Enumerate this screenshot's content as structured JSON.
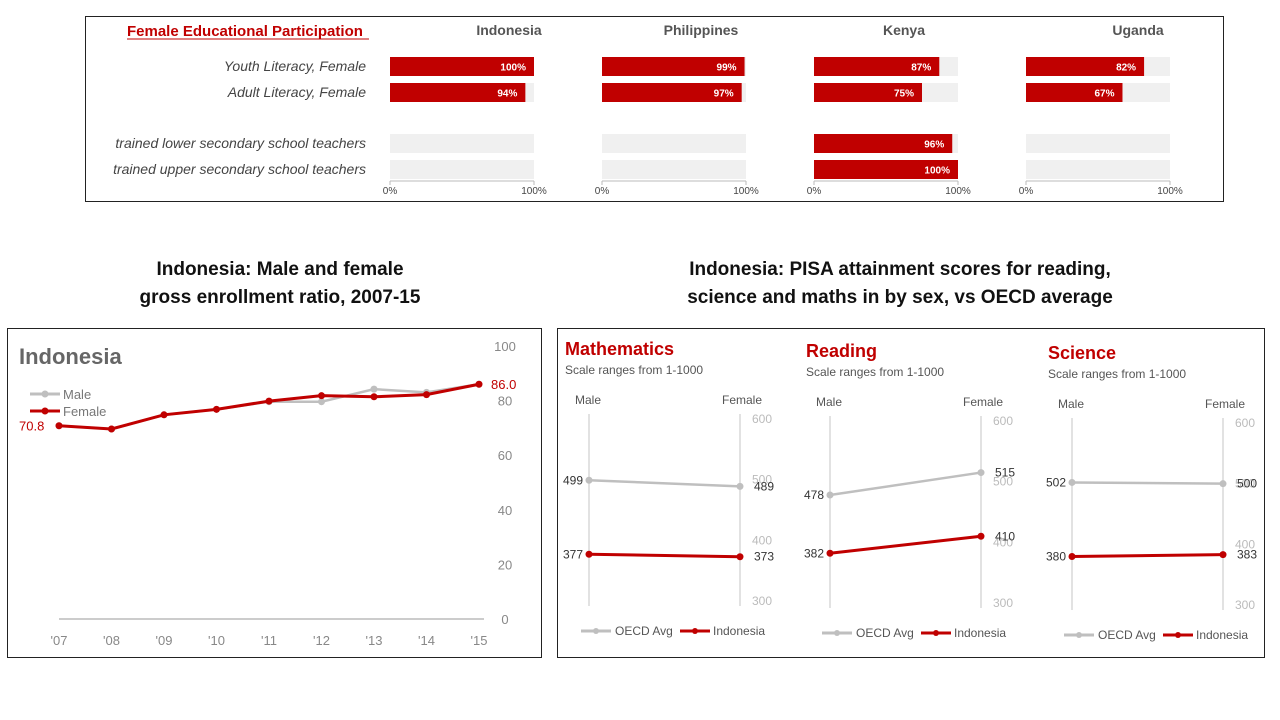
{
  "top_chart": {
    "title": "Female Educational Participation",
    "countries": [
      "Indonesia",
      "Philippines",
      "Kenya",
      "Uganda"
    ],
    "rows": [
      "Youth Literacy, Female",
      "Adult Literacy, Female",
      "trained lower secondary school teachers",
      "trained upper secondary school teachers"
    ],
    "axis_start": "0%",
    "axis_end": "100%",
    "colors": {
      "bar": "#c00000",
      "track": "#f0f0f0"
    }
  },
  "enrollment": {
    "heading_line1": "Indonesia: Male and female",
    "heading_line2": "gross enrollment ratio, 2007-15",
    "panel_title": "Indonesia"
  },
  "pisa": {
    "heading_line1": "Indonesia: PISA attainment scores for reading,",
    "heading_line2": "science and maths in by sex, vs OECD average"
  },
  "chart_data": [
    {
      "type": "bar",
      "orientation": "horizontal",
      "title": "Female Educational Participation",
      "categories": [
        "Youth Literacy, Female",
        "Adult Literacy, Female",
        "trained lower secondary school teachers",
        "trained upper secondary school teachers"
      ],
      "xlim": [
        0,
        100
      ],
      "series": [
        {
          "name": "Indonesia",
          "values": [
            100,
            94,
            null,
            null
          ],
          "labels": [
            "100%",
            "94%",
            "",
            ""
          ]
        },
        {
          "name": "Philippines",
          "values": [
            99,
            97,
            null,
            null
          ],
          "labels": [
            "99%",
            "97%",
            "",
            ""
          ]
        },
        {
          "name": "Kenya",
          "values": [
            87,
            75,
            96,
            100
          ],
          "labels": [
            "87%",
            "75%",
            "96%",
            "100%"
          ]
        },
        {
          "name": "Uganda",
          "values": [
            82,
            67,
            null,
            null
          ],
          "labels": [
            "82%",
            "67%",
            "",
            ""
          ]
        }
      ]
    },
    {
      "type": "line",
      "title": "Indonesia",
      "x": [
        "'07",
        "'08",
        "'09",
        "'10",
        "'11",
        "'12",
        "'13",
        "'14",
        "'15"
      ],
      "ylim": [
        0,
        100
      ],
      "yticks": [
        0,
        20,
        40,
        60,
        80,
        100
      ],
      "series": [
        {
          "name": "Male",
          "values": [
            70.8,
            69.6,
            74.8,
            76.8,
            79.6,
            79.6,
            84.2,
            83.0,
            86.0
          ],
          "color": "#bfbfbf"
        },
        {
          "name": "Female",
          "values": [
            70.8,
            69.6,
            74.8,
            76.8,
            79.8,
            81.8,
            81.4,
            82.2,
            86.0
          ],
          "color": "#c00000"
        }
      ],
      "annotations": {
        "start_label": "70.8",
        "end_label": "86.0"
      }
    },
    {
      "type": "line",
      "title": "Mathematics",
      "subtitle": "Scale ranges from 1-1000",
      "x": [
        "Male",
        "Female"
      ],
      "ylim": [
        300,
        600
      ],
      "yticks": [
        300,
        400,
        500,
        600
      ],
      "series": [
        {
          "name": "OECD Avg",
          "values": [
            499,
            489
          ],
          "color": "#bfbfbf"
        },
        {
          "name": "Indonesia",
          "values": [
            377,
            373
          ],
          "color": "#c00000"
        }
      ]
    },
    {
      "type": "line",
      "title": "Reading",
      "subtitle": "Scale ranges from 1-1000",
      "x": [
        "Male",
        "Female"
      ],
      "ylim": [
        300,
        600
      ],
      "yticks": [
        300,
        400,
        500,
        600
      ],
      "series": [
        {
          "name": "OECD Avg",
          "values": [
            478,
            515
          ],
          "color": "#bfbfbf"
        },
        {
          "name": "Indonesia",
          "values": [
            382,
            410
          ],
          "color": "#c00000"
        }
      ]
    },
    {
      "type": "line",
      "title": "Science",
      "subtitle": "Scale ranges from 1-1000",
      "x": [
        "Male",
        "Female"
      ],
      "ylim": [
        300,
        600
      ],
      "yticks": [
        300,
        400,
        500,
        600
      ],
      "series": [
        {
          "name": "OECD Avg",
          "values": [
            502,
            500
          ],
          "color": "#bfbfbf"
        },
        {
          "name": "Indonesia",
          "values": [
            380,
            383
          ],
          "color": "#c00000"
        }
      ]
    }
  ]
}
